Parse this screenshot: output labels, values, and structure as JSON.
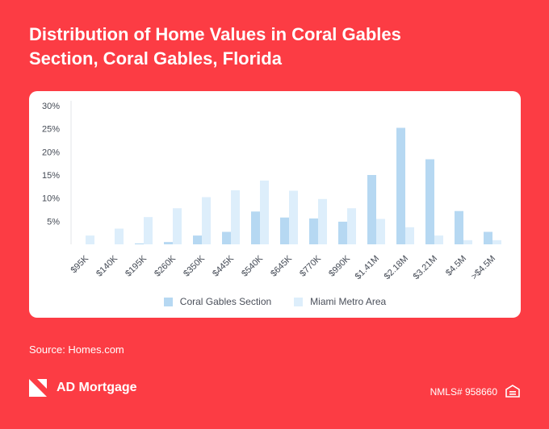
{
  "header": {
    "title_line1": "Distribution of Home Values in Coral Gables",
    "title_line2": "Section, Coral Gables, Florida"
  },
  "footer": {
    "source": "Source: Homes.com",
    "brand": "AD Mortgage",
    "nmls": "NMLS# 958660"
  },
  "icons": {
    "logo": "ad-mortgage-logo-icon",
    "housing": "equal-housing-opportunity-icon"
  },
  "chart_data": {
    "type": "bar",
    "categories": [
      "$95K",
      "$140K",
      "$195K",
      "$260K",
      "$350K",
      "$445K",
      "$540K",
      "$645K",
      "$770K",
      "$990K",
      "$1.41M",
      "$2.18M",
      "$3.21M",
      "$4.5M",
      ">$4.5M"
    ],
    "yticks": [
      "30%",
      "25%",
      "20%",
      "15%",
      "10%",
      "5%"
    ],
    "ylim": [
      0,
      30
    ],
    "grid": false,
    "legend_position": "bottom",
    "series": [
      {
        "name": "Coral Gables Section",
        "color": "#b6d8f2",
        "values": [
          0,
          0,
          0.2,
          0.5,
          1.9,
          2.7,
          7.1,
          5.8,
          5.6,
          4.9,
          15.0,
          25.2,
          18.4,
          7.2,
          2.7
        ]
      },
      {
        "name": "Miami Metro Area",
        "color": "#ddeefb",
        "values": [
          1.9,
          3.4,
          5.9,
          7.8,
          10.2,
          11.7,
          13.8,
          11.6,
          9.8,
          7.8,
          5.5,
          3.7,
          1.9,
          0.9,
          0.9
        ]
      }
    ]
  }
}
